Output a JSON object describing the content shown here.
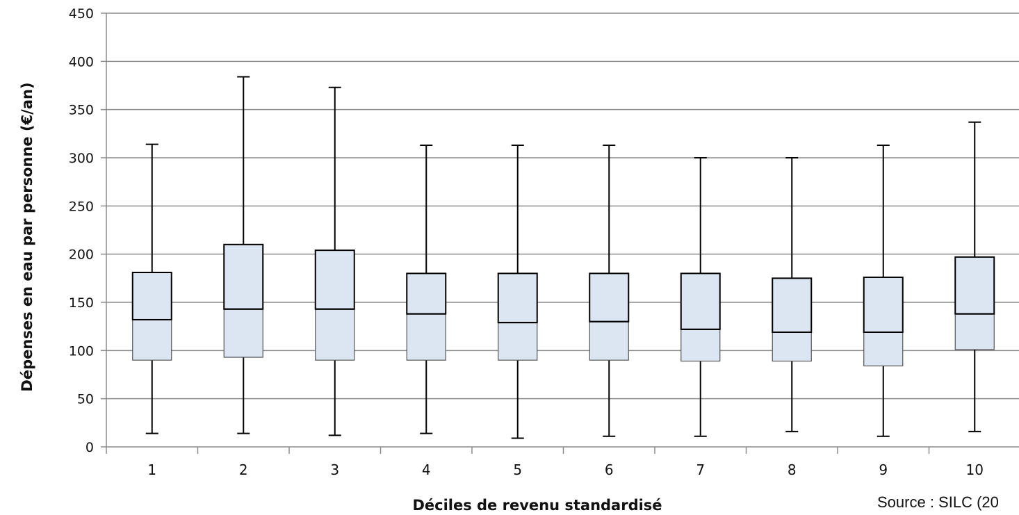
{
  "chart_data": {
    "type": "boxplot",
    "xlabel": "Déciles de revenu standardisé",
    "ylabel": "Dépenses en eau par personne (€/an)",
    "ylim": [
      0,
      450
    ],
    "yticks": [
      0,
      50,
      100,
      150,
      200,
      250,
      300,
      350,
      400,
      450
    ],
    "grid": true,
    "categories": [
      "1",
      "2",
      "3",
      "4",
      "5",
      "6",
      "7",
      "8",
      "9",
      "10"
    ],
    "boxes": [
      {
        "category": "1",
        "min": 14,
        "q1": 90,
        "median": 132,
        "q3": 181,
        "max": 314
      },
      {
        "category": "2",
        "min": 14,
        "q1": 93,
        "median": 143,
        "q3": 210,
        "max": 384
      },
      {
        "category": "3",
        "min": 12,
        "q1": 90,
        "median": 143,
        "q3": 204,
        "max": 373
      },
      {
        "category": "4",
        "min": 14,
        "q1": 90,
        "median": 138,
        "q3": 180,
        "max": 313
      },
      {
        "category": "5",
        "min": 9,
        "q1": 90,
        "median": 129,
        "q3": 180,
        "max": 313
      },
      {
        "category": "6",
        "min": 11,
        "q1": 90,
        "median": 130,
        "q3": 180,
        "max": 313
      },
      {
        "category": "7",
        "min": 11,
        "q1": 89,
        "median": 122,
        "q3": 180,
        "max": 300
      },
      {
        "category": "8",
        "min": 16,
        "q1": 89,
        "median": 119,
        "q3": 175,
        "max": 300
      },
      {
        "category": "9",
        "min": 11,
        "q1": 84,
        "median": 119,
        "q3": 176,
        "max": 313
      },
      {
        "category": "10",
        "min": 16,
        "q1": 101,
        "median": 138,
        "q3": 197,
        "max": 337
      }
    ],
    "colors": {
      "box_fill": "#dce6f2",
      "box_stroke": "#000000",
      "grid": "#8c8c8c",
      "axis": "#8c8c8c"
    }
  },
  "source_note": "Source : SILC (20"
}
